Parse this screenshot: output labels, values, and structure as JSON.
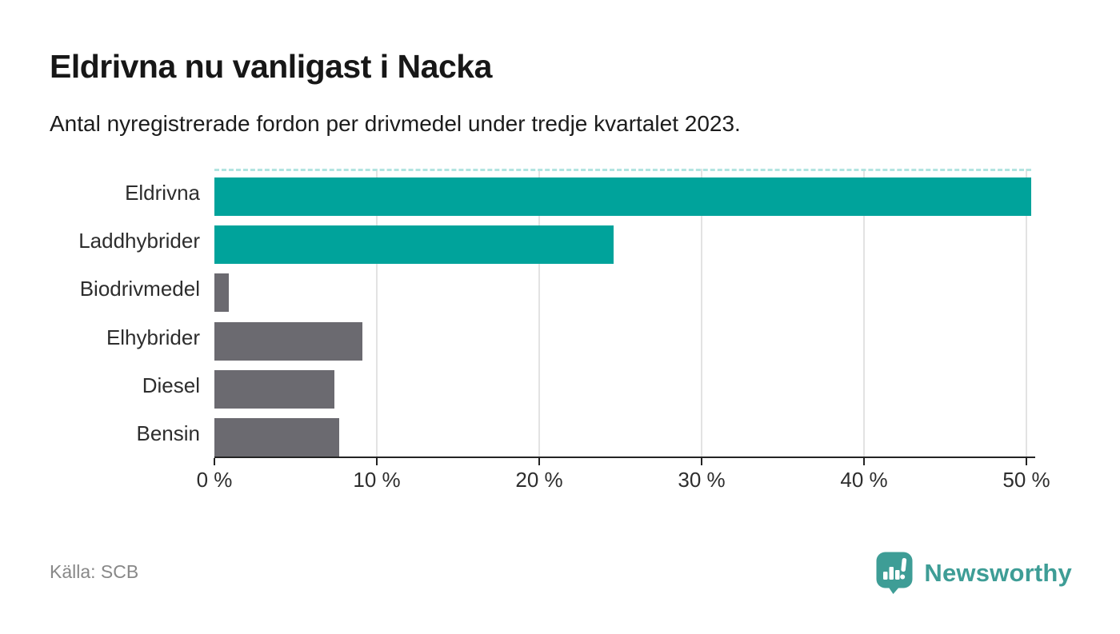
{
  "header": {
    "title": "Eldrivna nu vanligast i Nacka",
    "subtitle": "Antal nyregistrerade fordon per drivmedel under tredje kvartalet 2023."
  },
  "chart_data": {
    "type": "bar",
    "orientation": "horizontal",
    "title": "Eldrivna nu vanligast i Nacka",
    "subtitle": "Antal nyregistrerade fordon per drivmedel under tredje kvartalet 2023.",
    "categories": [
      "Eldrivna",
      "Laddhybrider",
      "Biodrivmedel",
      "Elhybrider",
      "Diesel",
      "Bensin"
    ],
    "values": [
      50.3,
      24.6,
      0.9,
      9.1,
      7.4,
      7.7
    ],
    "unit": "%",
    "bar_colors": [
      "#00A39B",
      "#00A39B",
      "#6B6A70",
      "#6B6A70",
      "#6B6A70",
      "#6B6A70"
    ],
    "xlabel": "",
    "ylabel": "",
    "xlim": [
      0,
      50.5
    ],
    "x_ticks": [
      {
        "value": 0,
        "label": "0 %"
      },
      {
        "value": 10,
        "label": "10 %"
      },
      {
        "value": 20,
        "label": "20 %"
      },
      {
        "value": 30,
        "label": "30 %"
      },
      {
        "value": 40,
        "label": "40 %"
      },
      {
        "value": 50,
        "label": "50 %"
      }
    ],
    "grid": "vertical",
    "legend": "none"
  },
  "footer": {
    "source": "Källa: SCB",
    "brand_name": "Newsworthy"
  },
  "icons": {
    "brand_logo": "newsworthy-speech-bubble-chart-icon"
  },
  "colors": {
    "highlight_bar": "#00A39B",
    "muted_bar": "#6B6A70",
    "gridline": "#E3E3E3",
    "axis": "#242424",
    "top_dash": "#B2E4E1",
    "brand_teal": "#3E9D96",
    "source_text": "#888888"
  }
}
